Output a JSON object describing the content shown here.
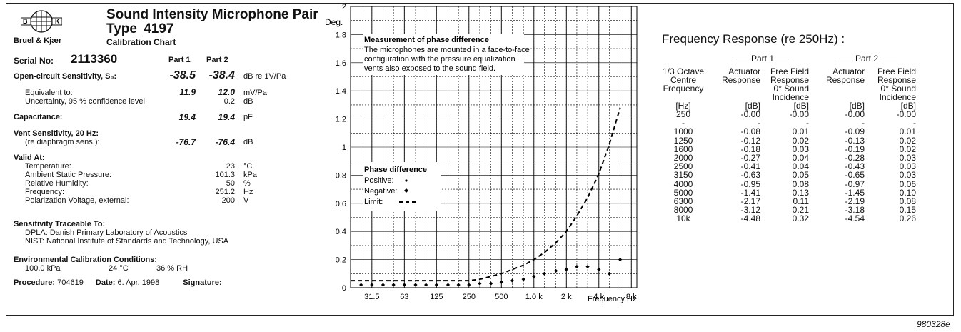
{
  "header": {
    "logo_top": "B",
    "logo_right": "K",
    "brand": "Bruel & Kjær",
    "title": "Sound Intensity Microphone Pair",
    "type_label": "Type",
    "type_num": "4197",
    "subtitle": "Calibration Chart"
  },
  "serial": {
    "label": "Serial No:",
    "value": "2113360",
    "part1": "Part 1",
    "part2": "Part 2"
  },
  "ocs": {
    "label": "Open-circuit Sensitivity, S₀:",
    "p1": "-38.5",
    "p2": "-38.4",
    "unit": "dB re 1V/Pa"
  },
  "equiv": {
    "label": "Equivalent to:",
    "p1": "11.9",
    "p2": "12.0",
    "unit": "mV/Pa"
  },
  "uncert": {
    "label": "Uncertainty, 95 % confidence level",
    "val": "0.2",
    "unit": "dB"
  },
  "cap": {
    "label": "Capacitance:",
    "p1": "19.4",
    "p2": "19.4",
    "unit": "pF"
  },
  "vent": {
    "label": "Vent Sensitivity, 20 Hz:",
    "sub": "(re diaphragm sens.):",
    "p1": "-76.7",
    "p2": "-76.4",
    "unit": "dB"
  },
  "valid": {
    "label": "Valid At:",
    "rows": [
      {
        "name": "Temperature:",
        "val": "23",
        "unit": "°C"
      },
      {
        "name": "Ambient Static Pressure:",
        "val": "101.3",
        "unit": "kPa"
      },
      {
        "name": "Relative Humidity:",
        "val": "50",
        "unit": "%"
      },
      {
        "name": "Frequency:",
        "val": "251.2",
        "unit": "Hz"
      },
      {
        "name": "Polarization Voltage, external:",
        "val": "200",
        "unit": "V"
      }
    ]
  },
  "trace": {
    "label": "Sensitivity Traceable To:",
    "l1": "DPLA: Danish Primary Laboratory of Acoustics",
    "l2": "NIST:  National Institute of Standards and Technology, USA"
  },
  "env": {
    "label": "Environmental Calibration Conditions:",
    "kpa": "100.0 kPa",
    "temp": "24 °C",
    "rh": "36 % RH"
  },
  "footer": {
    "proc_label": "Procedure:",
    "proc": "704619",
    "date_label": "Date:",
    "date": "6. Apr. 1998",
    "sig_label": "Signature:"
  },
  "chart_data": {
    "type": "scatter",
    "ylabel": "Deg.",
    "xlabel": "Frequency Hz",
    "ylim": [
      0,
      2
    ],
    "y_ticks": [
      "0",
      "0.2",
      "0.4",
      "0.6",
      "0.8",
      "1",
      "1.2",
      "1.4",
      "1.6",
      "1.8",
      "2"
    ],
    "x_ticks": [
      "31.5",
      "63",
      "125",
      "250",
      "500",
      "1.0 k",
      "2 k",
      "4 k",
      "8 k"
    ],
    "note_title": "Measurement of phase difference",
    "note_l1": "The microphones are mounted in a face-to-face",
    "note_l2": "configuration with the pressure equalization",
    "note_l3": "vents also exposed to the sound field.",
    "legend_title": "Phase difference",
    "legend_pos": "Positive:",
    "legend_neg": "Negative:",
    "legend_lim": "Limit:",
    "limit_x": [
      20,
      25,
      31.5,
      40,
      50,
      63,
      80,
      100,
      125,
      160,
      200,
      250,
      315,
      400,
      500,
      630,
      800,
      1000,
      1250,
      1600,
      2000,
      2500,
      3150,
      4000,
      5000,
      6300
    ],
    "limit_y": [
      0.05,
      0.05,
      0.05,
      0.05,
      0.05,
      0.05,
      0.05,
      0.05,
      0.05,
      0.05,
      0.05,
      0.05,
      0.06,
      0.08,
      0.1,
      0.13,
      0.16,
      0.2,
      0.25,
      0.32,
      0.4,
      0.51,
      0.64,
      0.81,
      1.02,
      1.28
    ],
    "points_x": [
      25,
      31.5,
      40,
      50,
      63,
      80,
      100,
      125,
      160,
      200,
      250,
      315,
      400,
      500,
      630,
      800,
      1000,
      1250,
      1600,
      2000,
      2500,
      3150,
      4000,
      5000,
      6300
    ],
    "points_y": [
      0.02,
      0.02,
      0.02,
      0.02,
      0.02,
      0.02,
      0.02,
      0.02,
      0.02,
      0.02,
      0.02,
      0.03,
      0.03,
      0.04,
      0.05,
      0.06,
      0.08,
      0.1,
      0.12,
      0.13,
      0.15,
      0.15,
      0.13,
      0.1,
      0.2
    ]
  },
  "freq": {
    "title": "Frequency Response (re 250Hz) :",
    "part1": "Part 1",
    "part2": "Part 2",
    "h_col1": [
      "1/3 Octave",
      "Centre",
      "Frequency"
    ],
    "h_act": [
      "Actuator",
      "Response"
    ],
    "h_ff": [
      "Free Field",
      "Response",
      "0° Sound",
      "Incidence"
    ],
    "units": [
      "[Hz]",
      "[dB]",
      "[dB]",
      "[dB]",
      "[dB]"
    ],
    "rows": [
      [
        "250",
        "-0.00",
        "-0.00",
        "-0.00",
        "-0.00"
      ],
      [
        "-",
        "-",
        "-",
        "-",
        "-"
      ],
      [
        "1000",
        "-0.08",
        "0.01",
        "-0.09",
        "0.01"
      ],
      [
        "1250",
        "-0.12",
        "0.02",
        "-0.13",
        "0.02"
      ],
      [
        "1600",
        "-0.18",
        "0.03",
        "-0.19",
        "0.02"
      ],
      [
        "2000",
        "-0.27",
        "0.04",
        "-0.28",
        "0.03"
      ],
      [
        "2500",
        "-0.41",
        "0.04",
        "-0.43",
        "0.03"
      ],
      [
        "3150",
        "-0.63",
        "0.05",
        "-0.65",
        "0.03"
      ],
      [
        "4000",
        "-0.95",
        "0.08",
        "-0.97",
        "0.06"
      ],
      [
        "5000",
        "-1.41",
        "0.13",
        "-1.45",
        "0.10"
      ],
      [
        "6300",
        "-2.17",
        "0.11",
        "-2.19",
        "0.08"
      ],
      [
        "8000",
        "-3.12",
        "0.21",
        "-3.18",
        "0.15"
      ],
      [
        "10k",
        "-4.48",
        "0.32",
        "-4.54",
        "0.26"
      ]
    ]
  },
  "code": "980328e"
}
